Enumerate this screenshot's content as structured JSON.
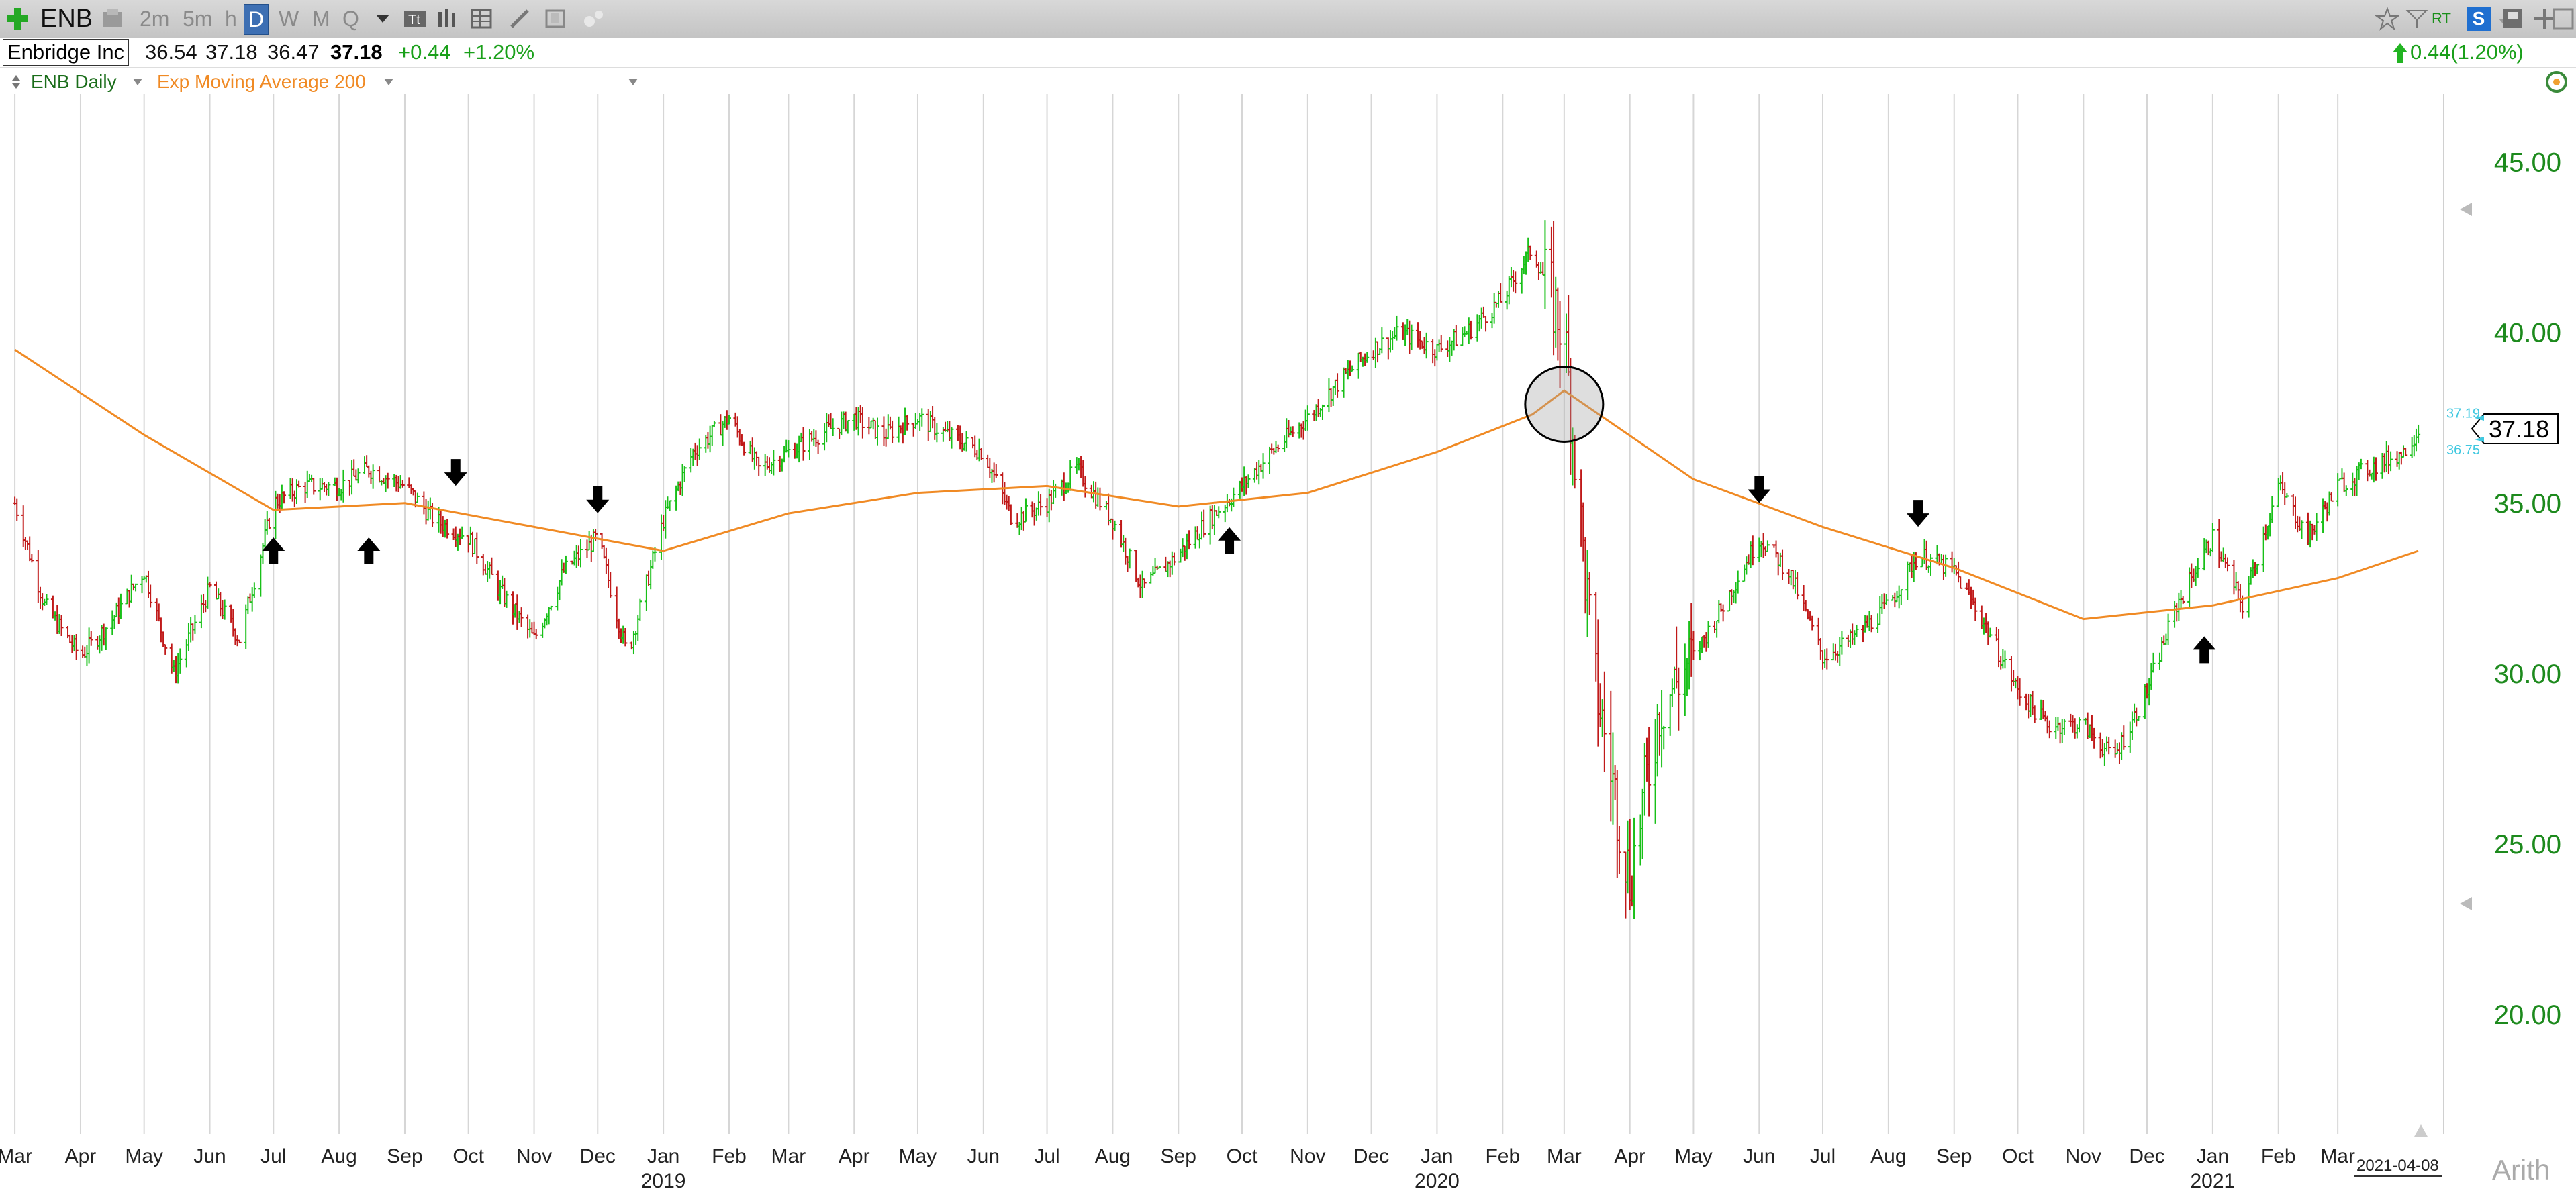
{
  "toolbar": {
    "symbol": "ENB",
    "timeframes": [
      "2m",
      "5m",
      "h",
      "D",
      "W",
      "M",
      "Q"
    ],
    "selected_timeframe": "D",
    "icons": [
      "add-symbol-icon",
      "save-icon",
      "dropdown-icon",
      "text-tool-icon",
      "chart-style-icon",
      "grid-icon",
      "draw-icon",
      "layout-icon",
      "settings-icon",
      "star-icon",
      "flag-icon",
      "realtime-icon",
      "subscription-icon",
      "window-icon",
      "move-icon",
      "expand-icon"
    ],
    "rt_label": "RT",
    "s_label": "S"
  },
  "quote": {
    "name": "Enbridge Inc",
    "open": "36.54",
    "high": "37.18",
    "low": "36.47",
    "close": "37.18",
    "change": "+0.44",
    "change_pct": "+1.20%",
    "right_change": "0.44(1.20%)",
    "up_color": "#1aa01a"
  },
  "study": {
    "series_label": "ENB Daily",
    "indicator_label": "Exp Moving Average 200",
    "indicator_color": "#f08a24"
  },
  "footer": {
    "date_badge": "2021-04-08",
    "scale_mode": "Arith"
  },
  "chart_data": {
    "type": "line",
    "title": "",
    "xlabel": "",
    "ylabel": "",
    "ylim": [
      16.5,
      47
    ],
    "y_ticks": [
      "45.00",
      "40.00",
      "35.00",
      "30.00",
      "25.00",
      "20.00"
    ],
    "last_price": "37.18",
    "last_price_hi": "37.19",
    "last_price_lo": "36.75",
    "x_month_labels": [
      "Mar",
      "Apr",
      "May",
      "Jun",
      "Jul",
      "Aug",
      "Sep",
      "Oct",
      "Nov",
      "Dec",
      "Jan",
      "Feb",
      "Mar",
      "Apr",
      "May",
      "Jun",
      "Jul",
      "Aug",
      "Sep",
      "Oct",
      "Nov",
      "Dec",
      "Jan",
      "Feb",
      "Mar",
      "Apr",
      "May",
      "Jun",
      "Jul",
      "Aug",
      "Sep",
      "Oct",
      "Nov",
      "Dec",
      "Jan",
      "Feb",
      "Mar"
    ],
    "x_year_labels": [
      {
        "label": "2019",
        "month_index": 10
      },
      {
        "label": "2020",
        "month_index": 22
      },
      {
        "label": "2021",
        "month_index": 34
      }
    ],
    "grid": true,
    "series": [
      {
        "name": "ENB Daily",
        "kind": "ohlc-bars",
        "up_color": "#19c019",
        "down_color": "#c01919",
        "x": [
          "2018-03-01",
          "2018-03-15",
          "2018-04-01",
          "2018-04-15",
          "2018-05-01",
          "2018-05-15",
          "2018-06-01",
          "2018-06-15",
          "2018-07-01",
          "2018-07-15",
          "2018-08-01",
          "2018-08-15",
          "2018-09-01",
          "2018-09-15",
          "2018-10-01",
          "2018-10-15",
          "2018-11-01",
          "2018-11-15",
          "2018-12-01",
          "2018-12-15",
          "2019-01-01",
          "2019-01-15",
          "2019-02-01",
          "2019-02-15",
          "2019-03-01",
          "2019-03-15",
          "2019-04-01",
          "2019-04-15",
          "2019-05-01",
          "2019-05-15",
          "2019-06-01",
          "2019-06-15",
          "2019-07-01",
          "2019-07-15",
          "2019-08-01",
          "2019-08-15",
          "2019-09-01",
          "2019-09-15",
          "2019-10-01",
          "2019-10-15",
          "2019-11-01",
          "2019-11-15",
          "2019-12-01",
          "2019-12-15",
          "2020-01-01",
          "2020-01-15",
          "2020-02-01",
          "2020-02-15",
          "2020-03-01",
          "2020-03-15",
          "2020-04-01",
          "2020-04-15",
          "2020-05-01",
          "2020-05-15",
          "2020-06-01",
          "2020-06-15",
          "2020-07-01",
          "2020-07-15",
          "2020-08-01",
          "2020-08-15",
          "2020-09-01",
          "2020-09-15",
          "2020-10-01",
          "2020-10-15",
          "2020-11-01",
          "2020-11-15",
          "2020-12-01",
          "2020-12-15",
          "2021-01-01",
          "2021-01-15",
          "2021-02-01",
          "2021-02-15",
          "2021-03-01",
          "2021-03-15",
          "2021-04-01",
          "2021-04-08"
        ],
        "values": [
          35.0,
          32.0,
          30.5,
          31.5,
          33.0,
          30.0,
          32.5,
          31.0,
          35.0,
          35.5,
          35.5,
          36.0,
          35.5,
          34.5,
          34.0,
          32.5,
          31.0,
          33.0,
          34.0,
          30.5,
          34.5,
          36.5,
          37.5,
          36.0,
          36.5,
          37.0,
          37.5,
          37.0,
          37.5,
          37.0,
          36.5,
          34.5,
          35.0,
          36.0,
          34.5,
          32.5,
          33.5,
          34.5,
          35.5,
          36.5,
          37.5,
          38.5,
          39.5,
          40.0,
          39.5,
          40.0,
          41.0,
          42.5,
          40.0,
          30.0,
          24.0,
          29.0,
          30.5,
          32.0,
          34.0,
          33.0,
          30.5,
          31.0,
          32.0,
          33.5,
          33.0,
          31.5,
          29.5,
          28.5,
          28.5,
          27.5,
          29.5,
          32.0,
          34.0,
          32.0,
          35.5,
          34.0,
          35.5,
          36.0,
          36.5,
          37.18
        ]
      },
      {
        "name": "Exp Moving Average 200",
        "kind": "line",
        "color": "#f08a24",
        "x": [
          "2018-03-01",
          "2018-05-01",
          "2018-07-01",
          "2018-09-01",
          "2018-11-01",
          "2019-01-01",
          "2019-03-01",
          "2019-05-01",
          "2019-07-01",
          "2019-09-01",
          "2019-11-01",
          "2020-01-01",
          "2020-02-15",
          "2020-03-01",
          "2020-05-01",
          "2020-07-01",
          "2020-09-01",
          "2020-11-01",
          "2021-01-01",
          "2021-03-01",
          "2021-04-08"
        ],
        "values": [
          39.5,
          37.0,
          34.8,
          35.0,
          34.3,
          33.6,
          34.7,
          35.3,
          35.5,
          34.9,
          35.3,
          36.5,
          37.6,
          38.3,
          35.7,
          34.3,
          33.1,
          31.6,
          32.0,
          32.8,
          33.6
        ]
      }
    ],
    "annotations": [
      {
        "type": "arrow-up",
        "date": "2018-07-01",
        "price": 33.6
      },
      {
        "type": "arrow-up",
        "date": "2018-08-15",
        "price": 33.6
      },
      {
        "type": "arrow-down",
        "date": "2018-09-25",
        "price": 35.9
      },
      {
        "type": "arrow-down",
        "date": "2018-12-01",
        "price": 35.1
      },
      {
        "type": "arrow-up",
        "date": "2019-09-25",
        "price": 33.9
      },
      {
        "type": "circle",
        "date": "2020-03-01",
        "price": 37.9
      },
      {
        "type": "arrow-down",
        "date": "2020-06-01",
        "price": 35.4
      },
      {
        "type": "arrow-down",
        "date": "2020-08-15",
        "price": 34.7
      },
      {
        "type": "arrow-up",
        "date": "2020-12-28",
        "price": 30.7
      }
    ]
  }
}
